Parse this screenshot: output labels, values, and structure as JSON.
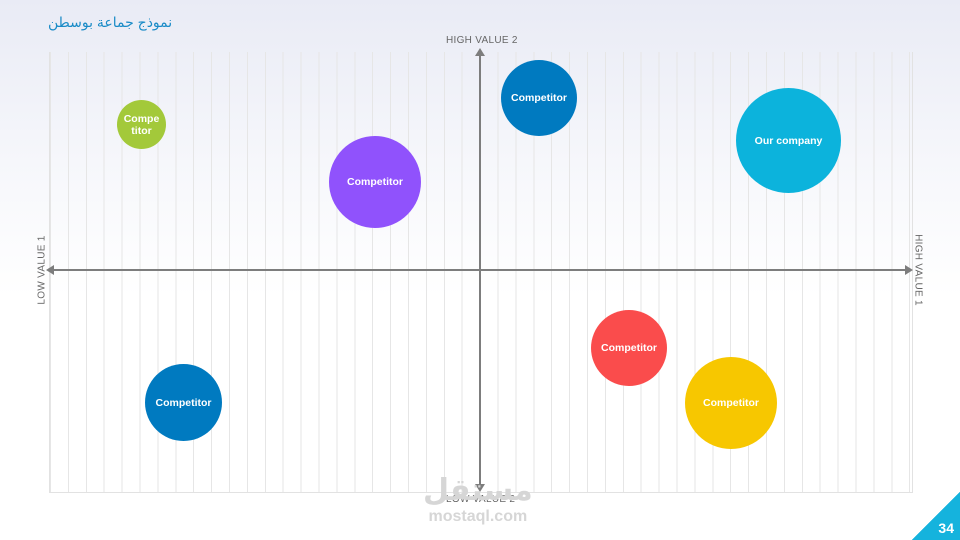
{
  "slide": {
    "title": "نموذج جماعة بوسطن",
    "page_number": "34"
  },
  "axes": {
    "top_label": "HIGH VALUE 2",
    "bottom_label": "LOW VALUE 2",
    "left_label": "LOW VALUE 1",
    "right_label": "HIGH VALUE 1"
  },
  "bubbles": [
    {
      "label": "Compe\ntitor",
      "color": "#a3c93a"
    },
    {
      "label": "Competitor",
      "color": "#007ac0"
    },
    {
      "label": "Competitor",
      "color": "#9052fc"
    },
    {
      "label": "Our company",
      "color": "#0cb3dc"
    },
    {
      "label": "Competitor",
      "color": "#007ac0"
    },
    {
      "label": "Competitor",
      "color": "#fa4c4c"
    },
    {
      "label": "Competitor",
      "color": "#f7c700"
    }
  ],
  "watermark": {
    "arabic": "مستقل",
    "latin": "mostaql.com"
  }
}
